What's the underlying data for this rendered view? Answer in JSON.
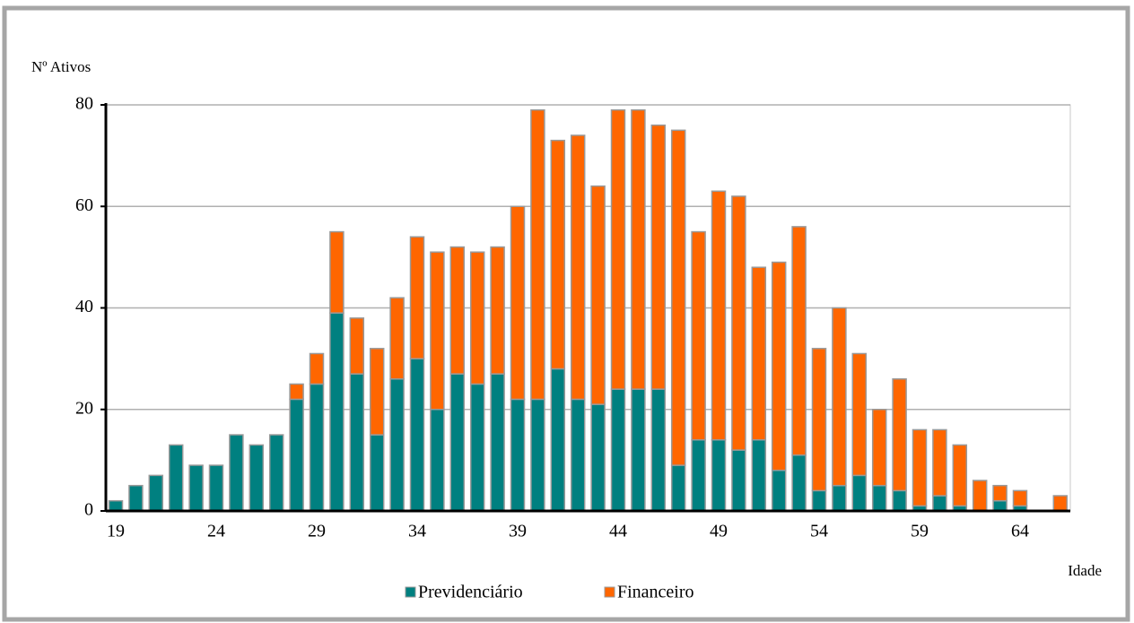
{
  "chart_data": {
    "type": "stacked-bar",
    "y_label": "Nº Ativos",
    "x_label": "Idade",
    "categories": [
      "19",
      null,
      null,
      null,
      null,
      "24",
      null,
      null,
      null,
      null,
      "29",
      null,
      null,
      null,
      null,
      "34",
      null,
      null,
      null,
      null,
      "39",
      null,
      null,
      null,
      null,
      "44",
      null,
      null,
      null,
      null,
      "49",
      null,
      null,
      null,
      null,
      "54",
      null,
      null,
      null,
      null,
      "59",
      null,
      null,
      null,
      null,
      "64",
      null,
      null
    ],
    "series": [
      {
        "name": "Previdenciário",
        "color": "#008080",
        "values": [
          2,
          5,
          7,
          13,
          9,
          9,
          15,
          13,
          15,
          22,
          25,
          39,
          27,
          15,
          26,
          30,
          20,
          27,
          25,
          27,
          22,
          22,
          28,
          22,
          21,
          24,
          24,
          24,
          9,
          14,
          14,
          12,
          14,
          8,
          11,
          4,
          5,
          7,
          5,
          4,
          1,
          3,
          1,
          0,
          2,
          1,
          0,
          0
        ]
      },
      {
        "name": "Financeiro",
        "color": "#ff6600",
        "values": [
          0,
          0,
          0,
          0,
          0,
          0,
          0,
          0,
          0,
          3,
          6,
          16,
          11,
          17,
          16,
          24,
          31,
          25,
          26,
          25,
          38,
          57,
          45,
          52,
          43,
          55,
          55,
          52,
          66,
          41,
          49,
          50,
          34,
          41,
          45,
          28,
          35,
          24,
          15,
          22,
          15,
          13,
          12,
          6,
          3,
          3,
          0,
          3
        ]
      }
    ],
    "ylim": [
      0,
      80
    ],
    "yticks": [
      0,
      20,
      40,
      60,
      80
    ],
    "grid": true
  }
}
